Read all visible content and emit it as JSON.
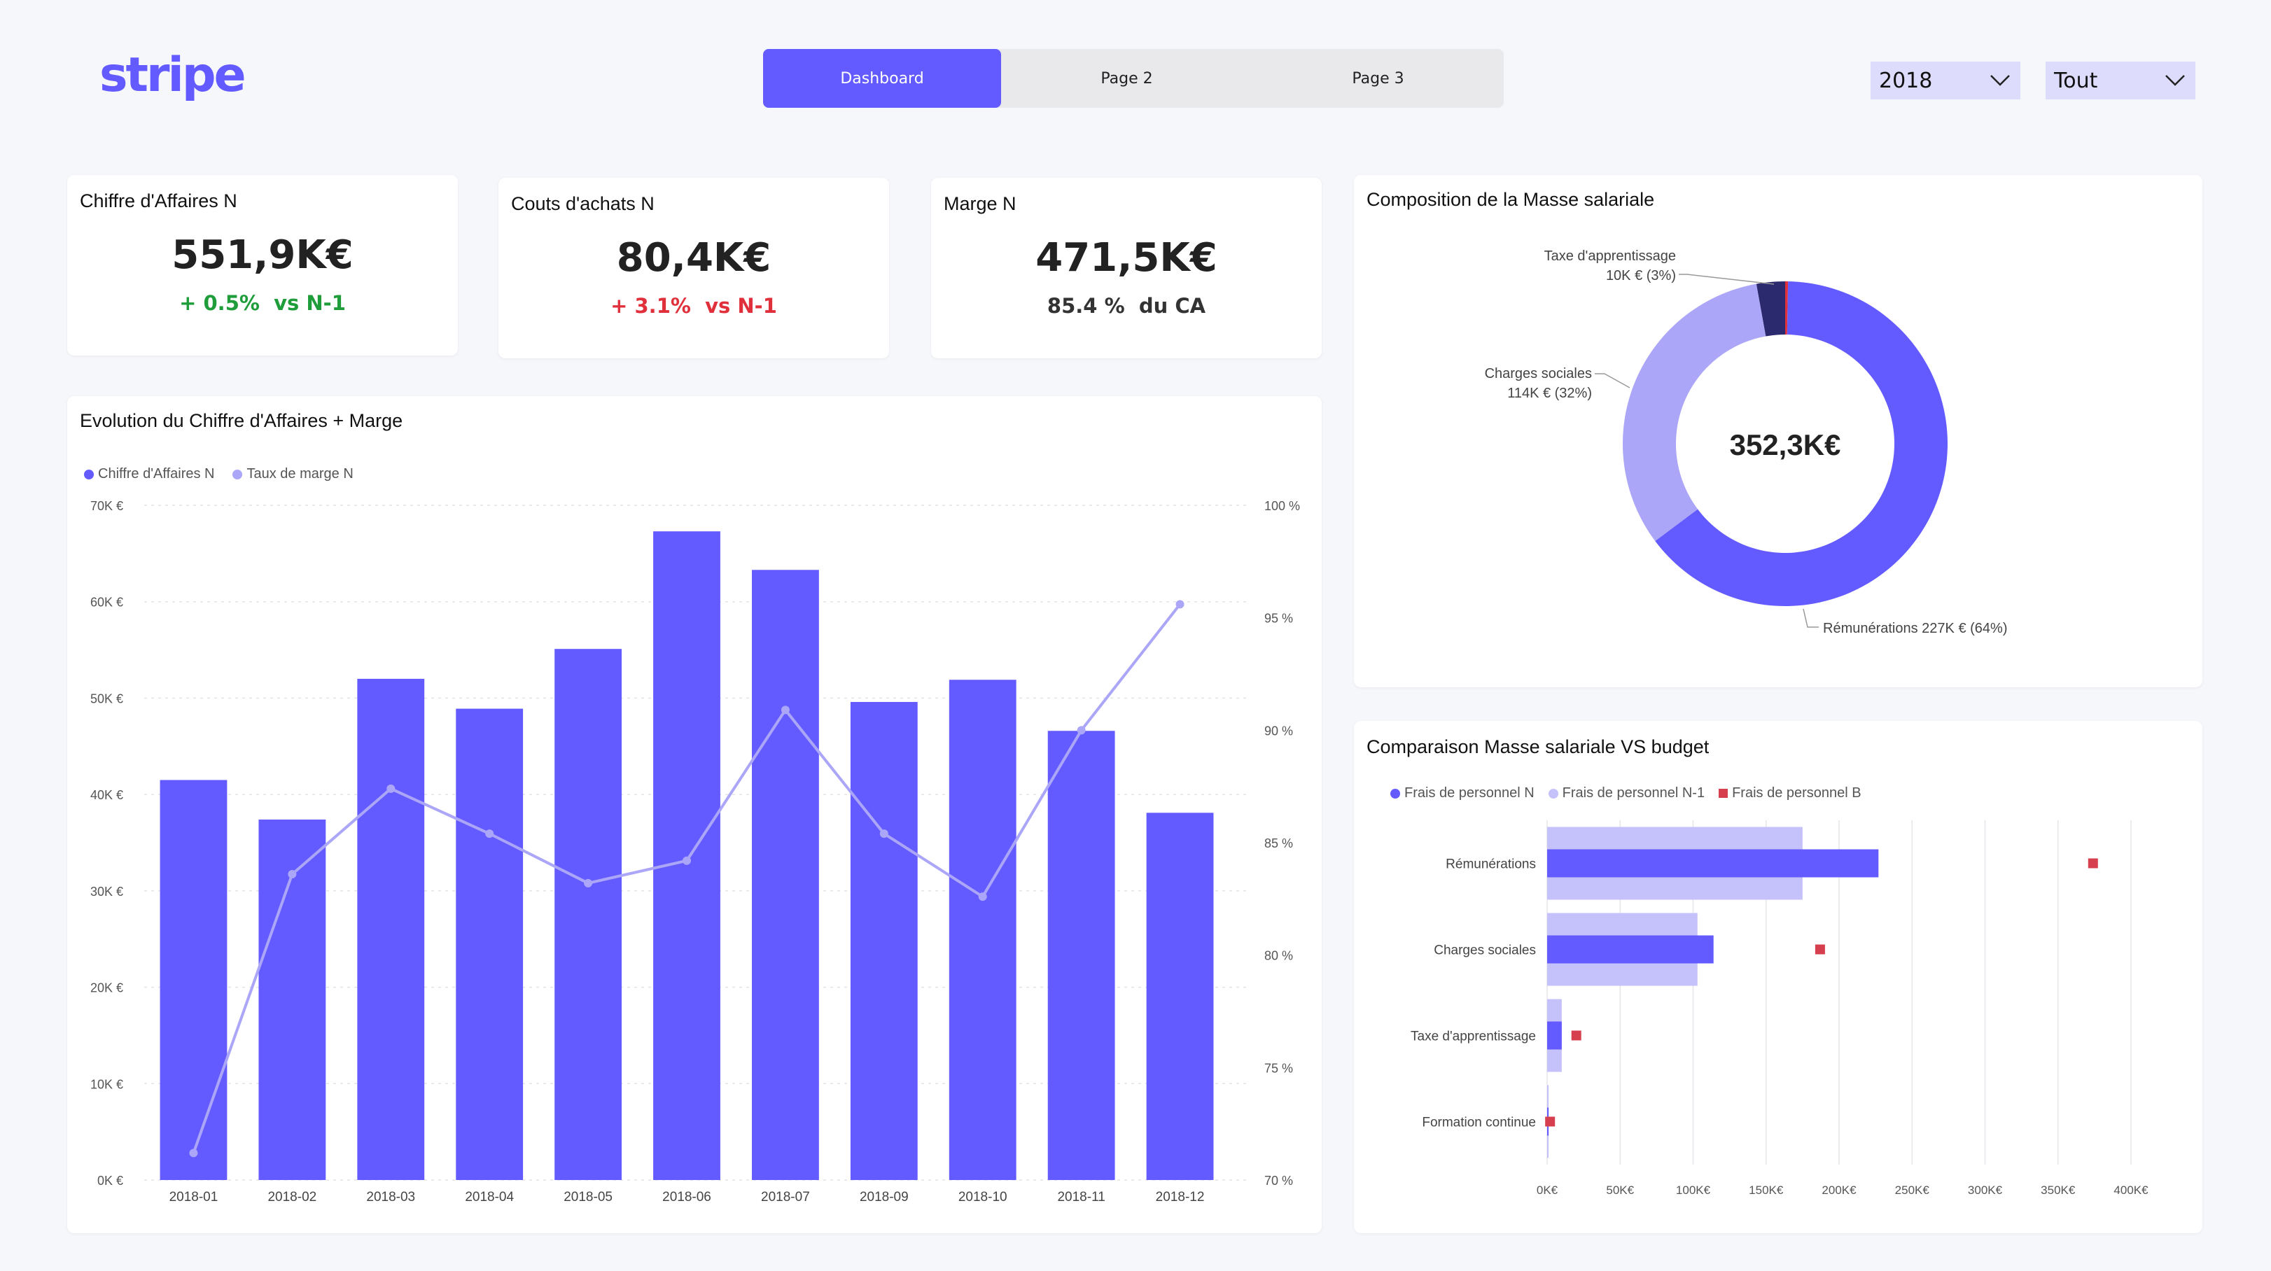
{
  "brand": {
    "logo_text": "stripe",
    "accent": "#635bff"
  },
  "nav": {
    "tabs": [
      {
        "label": "Dashboard",
        "active": true
      },
      {
        "label": "Page 2",
        "active": false
      },
      {
        "label": "Page 3",
        "active": false
      }
    ]
  },
  "filters": {
    "year": "2018",
    "scope": "Tout"
  },
  "kpis": [
    {
      "title": "Chiffre d'Affaires N",
      "value": "551,9K€",
      "delta": "+ 0.5%",
      "suffix": "vs N-1",
      "color": "#1f9d3a"
    },
    {
      "title": "Couts d'achats N",
      "value": "80,4K€",
      "delta": "+ 3.1%",
      "suffix": "vs N-1",
      "color": "#e0303c"
    },
    {
      "title": "Marge N",
      "value": "471,5K€",
      "delta": "85.4 %",
      "suffix": "du CA",
      "color": "#333333"
    }
  ],
  "evolution": {
    "title": "Evolution du Chiffre d'Affaires + Marge",
    "legend": [
      "Chiffre d'Affaires N",
      "Taux de marge N"
    ],
    "colors": {
      "bar": "#635bff",
      "line": "#aba6f7"
    }
  },
  "donut": {
    "title": "Composition de la Masse salariale",
    "center": "352,3K€",
    "labels": {
      "taxe_name": "Taxe d'apprentissage",
      "taxe_val": "10K € (3%)",
      "charges_name": "Charges sociales",
      "charges_val": "114K € (32%)",
      "remu": "Rémunérations 227K € (64%)"
    }
  },
  "comparison": {
    "title": "Comparaison Masse salariale VS budget",
    "legend": [
      "Frais de personnel N",
      "Frais de personnel N-1",
      "Frais de personnel B"
    ]
  },
  "chart_data": [
    {
      "type": "bar",
      "title": "Evolution du Chiffre d'Affaires + Marge",
      "categories": [
        "2018-01",
        "2018-02",
        "2018-03",
        "2018-04",
        "2018-05",
        "2018-06",
        "2018-07",
        "2018-09",
        "2018-10",
        "2018-11",
        "2018-12"
      ],
      "series": [
        {
          "name": "Chiffre d'Affaires N",
          "axis": "left",
          "type": "bar",
          "color": "#635bff",
          "values": [
            41500,
            37400,
            52000,
            48900,
            55100,
            67300,
            63300,
            49600,
            51900,
            46600,
            38100
          ]
        },
        {
          "name": "Taux de marge N",
          "axis": "right",
          "type": "line",
          "color": "#aba6f7",
          "values": [
            71.2,
            83.6,
            87.4,
            85.4,
            83.2,
            84.2,
            90.9,
            85.4,
            82.6,
            90.0,
            95.6
          ]
        }
      ],
      "y_left": {
        "ylim": [
          0,
          70000
        ],
        "ticks": [
          "0K €",
          "10K €",
          "20K €",
          "30K €",
          "40K €",
          "50K €",
          "60K €",
          "70K €"
        ]
      },
      "y_right": {
        "ylim": [
          70,
          100
        ],
        "ticks": [
          "70 %",
          "75 %",
          "80 %",
          "85 %",
          "90 %",
          "95 %",
          "100 %"
        ]
      },
      "grid": true,
      "legend_position": "top-left"
    },
    {
      "type": "pie",
      "title": "Composition de la Masse salariale",
      "donut": true,
      "total_label": "352,3K€",
      "slices": [
        {
          "name": "Rémunérations",
          "value": 227,
          "pct": 64,
          "color": "#635bff"
        },
        {
          "name": "Charges sociales",
          "value": 114,
          "pct": 32,
          "color": "#aba6f7"
        },
        {
          "name": "Taxe d'apprentissage",
          "value": 10,
          "pct": 3,
          "color": "#2c2a6e"
        },
        {
          "name": "Formation continue",
          "value": 1,
          "pct": 0.3,
          "color": "#e0303c"
        }
      ]
    },
    {
      "type": "bar",
      "orientation": "horizontal",
      "title": "Comparaison Masse salariale VS budget",
      "categories": [
        "Rémunérations",
        "Charges sociales",
        "Taxe d'apprentissage",
        "Formation continue"
      ],
      "series": [
        {
          "name": "Frais de personnel N",
          "color": "#635bff",
          "values": [
            227,
            114,
            10,
            1
          ]
        },
        {
          "name": "Frais de personnel N-1",
          "color": "#c5c2fb",
          "values": [
            175,
            103,
            10,
            1
          ]
        },
        {
          "name": "Frais de personnel B",
          "color": "#d6404e",
          "marker": "square",
          "values": [
            374,
            187,
            20,
            2
          ]
        }
      ],
      "x_ticks": [
        "0K€",
        "50K€",
        "100K€",
        "150K€",
        "200K€",
        "250K€",
        "300K€",
        "350K€",
        "400K€"
      ],
      "xlim": [
        0,
        400
      ],
      "grid": true,
      "legend_position": "top-left"
    }
  ]
}
